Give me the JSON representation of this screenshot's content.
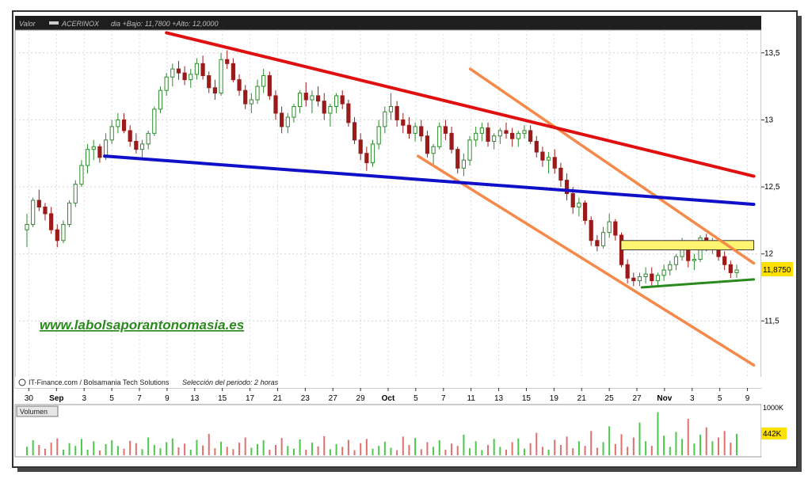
{
  "header": {
    "valor_label": "Valor",
    "series_label": "ACERINOX",
    "info": "dia +Bajo: 11,7800 +Alto: 12,0000"
  },
  "footer_note": "IT-Finance.com / Bolsamania Tech Solutions",
  "period_note": "Selección del periodo: 2 horas",
  "watermark": "www.labolsaporantonomasia.es",
  "colors": {
    "background": "#ffffff",
    "frame": "#c8c8c8",
    "up_candle": "#2e8b2e",
    "down_candle": "#9b1b1b",
    "resistance_red": "#e01010",
    "support_blue": "#1010c8",
    "channel_orange": "#f5894a",
    "green_support": "#2a8a1e",
    "zone_yellow": "#fff470",
    "volume_up": "#4cc84c",
    "volume_down": "#e07070"
  },
  "chart_data": {
    "type": "candlestick",
    "y_axis": {
      "ticks": [
        "13,5",
        "13",
        "12,5",
        "12",
        "11,5"
      ],
      "tick_values": [
        13.5,
        13.0,
        12.5,
        12.0,
        11.5
      ],
      "ylim": [
        11.0,
        13.67
      ],
      "last_price_label": "11,8750",
      "last_price": 11.875
    },
    "x_axis": {
      "labels": [
        "30",
        "Sep",
        "3",
        "5",
        "7",
        "9",
        "13",
        "15",
        "17",
        "21",
        "23",
        "27",
        "29",
        "Oct",
        "5",
        "7",
        "11",
        "13",
        "15",
        "19",
        "21",
        "25",
        "27",
        "Nov",
        "3",
        "5",
        "9"
      ],
      "bold": [
        "Sep",
        "Oct",
        "Nov"
      ]
    },
    "candles": [
      [
        12.18,
        12.3,
        12.05,
        12.22
      ],
      [
        12.22,
        12.42,
        12.2,
        12.4
      ],
      [
        12.4,
        12.48,
        12.32,
        12.35
      ],
      [
        12.35,
        12.38,
        12.25,
        12.3
      ],
      [
        12.3,
        12.35,
        12.15,
        12.18
      ],
      [
        12.18,
        12.22,
        12.05,
        12.1
      ],
      [
        12.1,
        12.25,
        12.08,
        12.22
      ],
      [
        12.22,
        12.4,
        12.2,
        12.38
      ],
      [
        12.38,
        12.55,
        12.35,
        12.52
      ],
      [
        12.52,
        12.7,
        12.5,
        12.66
      ],
      [
        12.66,
        12.82,
        12.6,
        12.78
      ],
      [
        12.78,
        12.85,
        12.7,
        12.8
      ],
      [
        12.8,
        12.82,
        12.68,
        12.72
      ],
      [
        12.72,
        12.9,
        12.7,
        12.85
      ],
      [
        12.85,
        13.0,
        12.82,
        12.95
      ],
      [
        12.95,
        13.05,
        12.9,
        13.0
      ],
      [
        13.0,
        13.05,
        12.9,
        12.92
      ],
      [
        12.92,
        12.96,
        12.8,
        12.84
      ],
      [
        12.84,
        12.9,
        12.75,
        12.78
      ],
      [
        12.78,
        12.85,
        12.72,
        12.82
      ],
      [
        12.82,
        12.92,
        12.78,
        12.9
      ],
      [
        12.9,
        13.1,
        12.88,
        13.08
      ],
      [
        13.08,
        13.25,
        13.05,
        13.22
      ],
      [
        13.22,
        13.35,
        13.18,
        13.32
      ],
      [
        13.32,
        13.42,
        13.25,
        13.38
      ],
      [
        13.38,
        13.44,
        13.3,
        13.35
      ],
      [
        13.35,
        13.4,
        13.26,
        13.3
      ],
      [
        13.3,
        13.38,
        13.24,
        13.34
      ],
      [
        13.34,
        13.46,
        13.3,
        13.42
      ],
      [
        13.42,
        13.48,
        13.3,
        13.33
      ],
      [
        13.33,
        13.36,
        13.2,
        13.24
      ],
      [
        13.24,
        13.3,
        13.15,
        13.2
      ],
      [
        13.2,
        13.5,
        13.18,
        13.45
      ],
      [
        13.45,
        13.52,
        13.38,
        13.42
      ],
      [
        13.42,
        13.46,
        13.28,
        13.3
      ],
      [
        13.3,
        13.34,
        13.18,
        13.22
      ],
      [
        13.22,
        13.26,
        13.08,
        13.12
      ],
      [
        13.12,
        13.2,
        13.05,
        13.15
      ],
      [
        13.15,
        13.3,
        13.12,
        13.25
      ],
      [
        13.25,
        13.38,
        13.2,
        13.33
      ],
      [
        13.33,
        13.36,
        13.15,
        13.18
      ],
      [
        13.18,
        13.22,
        13.0,
        13.05
      ],
      [
        13.05,
        13.1,
        12.9,
        12.95
      ],
      [
        12.95,
        13.05,
        12.9,
        13.02
      ],
      [
        13.02,
        13.12,
        12.98,
        13.1
      ],
      [
        13.1,
        13.22,
        13.05,
        13.2
      ],
      [
        13.2,
        13.28,
        13.1,
        13.15
      ],
      [
        13.15,
        13.22,
        13.05,
        13.18
      ],
      [
        13.18,
        13.25,
        13.1,
        13.14
      ],
      [
        13.14,
        13.2,
        13.0,
        13.05
      ],
      [
        13.05,
        13.12,
        12.95,
        13.1
      ],
      [
        13.1,
        13.2,
        13.05,
        13.18
      ],
      [
        13.18,
        13.22,
        13.08,
        13.12
      ],
      [
        13.12,
        13.15,
        12.95,
        12.98
      ],
      [
        12.98,
        13.02,
        12.82,
        12.85
      ],
      [
        12.85,
        12.9,
        12.7,
        12.75
      ],
      [
        12.75,
        12.8,
        12.62,
        12.68
      ],
      [
        12.68,
        12.85,
        12.65,
        12.82
      ],
      [
        12.82,
        13.0,
        12.78,
        12.95
      ],
      [
        12.95,
        13.1,
        12.9,
        13.06
      ],
      [
        13.06,
        13.2,
        13.0,
        13.1
      ],
      [
        13.1,
        13.14,
        12.95,
        13.0
      ],
      [
        13.0,
        13.05,
        12.9,
        12.96
      ],
      [
        12.96,
        13.02,
        12.86,
        12.9
      ],
      [
        12.9,
        12.98,
        12.84,
        12.95
      ],
      [
        12.95,
        13.0,
        12.84,
        12.88
      ],
      [
        12.88,
        12.92,
        12.72,
        12.75
      ],
      [
        12.75,
        12.82,
        12.66,
        12.8
      ],
      [
        12.8,
        12.98,
        12.78,
        12.95
      ],
      [
        12.95,
        13.0,
        12.85,
        12.9
      ],
      [
        12.9,
        12.95,
        12.75,
        12.78
      ],
      [
        12.78,
        12.8,
        12.6,
        12.64
      ],
      [
        12.64,
        12.75,
        12.58,
        12.7
      ],
      [
        12.7,
        12.88,
        12.66,
        12.85
      ],
      [
        12.85,
        12.95,
        12.8,
        12.9
      ],
      [
        12.9,
        12.98,
        12.84,
        12.94
      ],
      [
        12.94,
        12.98,
        12.8,
        12.84
      ],
      [
        12.84,
        12.9,
        12.78,
        12.88
      ],
      [
        12.88,
        12.94,
        12.82,
        12.92
      ],
      [
        12.92,
        12.98,
        12.86,
        12.9
      ],
      [
        12.9,
        12.94,
        12.8,
        12.86
      ],
      [
        12.86,
        12.92,
        12.8,
        12.9
      ],
      [
        12.9,
        12.96,
        12.86,
        12.92
      ],
      [
        12.92,
        12.96,
        12.82,
        12.84
      ],
      [
        12.84,
        12.88,
        12.72,
        12.76
      ],
      [
        12.76,
        12.8,
        12.65,
        12.7
      ],
      [
        12.7,
        12.76,
        12.6,
        12.72
      ],
      [
        12.72,
        12.78,
        12.6,
        12.64
      ],
      [
        12.64,
        12.68,
        12.5,
        12.55
      ],
      [
        12.55,
        12.6,
        12.4,
        12.45
      ],
      [
        12.45,
        12.5,
        12.3,
        12.35
      ],
      [
        12.35,
        12.42,
        12.28,
        12.38
      ],
      [
        12.38,
        12.4,
        12.22,
        12.25
      ],
      [
        12.25,
        12.28,
        12.06,
        12.1
      ],
      [
        12.1,
        12.14,
        12.02,
        12.06
      ],
      [
        12.06,
        12.2,
        12.04,
        12.16
      ],
      [
        12.16,
        12.3,
        12.12,
        12.24
      ],
      [
        12.24,
        12.26,
        12.1,
        12.14
      ],
      [
        12.14,
        12.16,
        11.9,
        11.92
      ],
      [
        11.92,
        11.96,
        11.78,
        11.82
      ],
      [
        11.82,
        11.86,
        11.76,
        11.8
      ],
      [
        11.8,
        11.86,
        11.76,
        11.83
      ],
      [
        11.83,
        11.9,
        11.78,
        11.85
      ],
      [
        11.85,
        11.9,
        11.76,
        11.8
      ],
      [
        11.8,
        11.86,
        11.76,
        11.84
      ],
      [
        11.84,
        11.92,
        11.8,
        11.88
      ],
      [
        11.88,
        11.95,
        11.84,
        11.92
      ],
      [
        11.92,
        12.0,
        11.88,
        11.98
      ],
      [
        11.98,
        12.12,
        11.95,
        12.08
      ],
      [
        12.08,
        12.1,
        11.9,
        11.95
      ],
      [
        11.95,
        12.0,
        11.88,
        11.96
      ],
      [
        11.96,
        12.14,
        11.94,
        12.12
      ],
      [
        12.12,
        12.15,
        12.02,
        12.06
      ],
      [
        12.06,
        12.12,
        12.0,
        12.08
      ],
      [
        12.08,
        12.12,
        11.95,
        11.98
      ],
      [
        11.98,
        12.02,
        11.88,
        11.92
      ],
      [
        11.92,
        11.95,
        11.82,
        11.86
      ],
      [
        11.86,
        11.92,
        11.82,
        11.88
      ]
    ],
    "annotations": {
      "red_resistance": [
        [
          0.203,
          13.65
        ],
        [
          0.99,
          12.58
        ]
      ],
      "blue_support": [
        [
          0.12,
          12.73
        ],
        [
          0.99,
          12.37
        ]
      ],
      "orange_upper_channel": [
        [
          0.61,
          13.38
        ],
        [
          0.99,
          11.93
        ]
      ],
      "orange_lower_channel": [
        [
          0.54,
          12.73
        ],
        [
          0.99,
          11.17
        ]
      ],
      "green_support": [
        [
          0.84,
          11.75
        ],
        [
          0.99,
          11.81
        ]
      ],
      "yellow_zone": [
        [
          0.812,
          12.03
        ],
        [
          0.99,
          12.1
        ]
      ]
    },
    "volume": {
      "label": "Volumen",
      "ticks": [
        "1000K",
        "442K"
      ],
      "tick_values": [
        1000000,
        442000
      ],
      "values": [
        0.18,
        0.32,
        0.22,
        0.14,
        0.27,
        0.36,
        0.12,
        0.26,
        0.2,
        0.35,
        0.12,
        0.3,
        0.1,
        0.24,
        0.32,
        0.2,
        0.14,
        0.31,
        0.26,
        0.13,
        0.38,
        0.22,
        0.15,
        0.28,
        0.36,
        0.17,
        0.25,
        0.12,
        0.33,
        0.21,
        0.46,
        0.15,
        0.29,
        0.18,
        0.13,
        0.27,
        0.38,
        0.16,
        0.24,
        0.32,
        0.12,
        0.22,
        0.37,
        0.2,
        0.14,
        0.34,
        0.12,
        0.27,
        0.19,
        0.41,
        0.13,
        0.24,
        0.18,
        0.33,
        0.11,
        0.26,
        0.35,
        0.14,
        0.2,
        0.29,
        0.16,
        0.11,
        0.4,
        0.22,
        0.37,
        0.13,
        0.28,
        0.18,
        0.32,
        0.12,
        0.25,
        0.2,
        0.44,
        0.15,
        0.3,
        0.11,
        0.22,
        0.35,
        0.18,
        0.12,
        0.28,
        0.36,
        0.14,
        0.26,
        0.48,
        0.18,
        0.12,
        0.33,
        0.22,
        0.4,
        0.15,
        0.3,
        0.2,
        0.52,
        0.16,
        0.28,
        0.62,
        0.24,
        0.45,
        0.18,
        0.38,
        0.7,
        0.3,
        0.2,
        0.92,
        0.42,
        0.18,
        0.5,
        0.35,
        0.78,
        0.25,
        0.44,
        0.6,
        0.3,
        0.38,
        0.52,
        0.27,
        0.46
      ]
    }
  }
}
